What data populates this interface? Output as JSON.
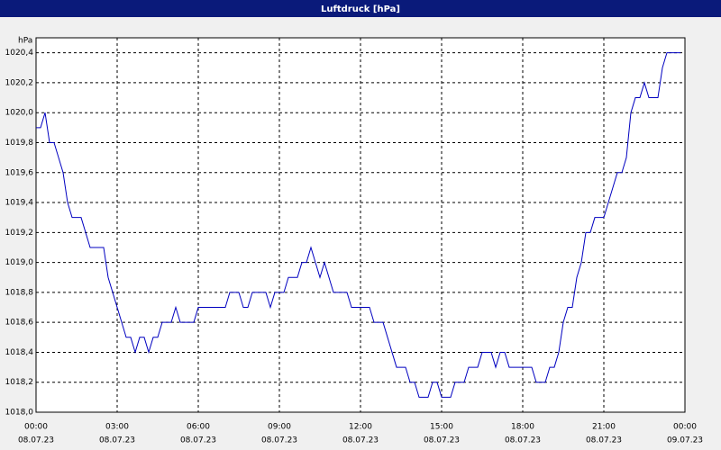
{
  "chart_data": {
    "type": "line",
    "title": "Luftdruck [hPa]",
    "y_unit": "hPa",
    "x": [
      0,
      10,
      20,
      30,
      40,
      50,
      60,
      70,
      80,
      100,
      120,
      150,
      160,
      170,
      180,
      190,
      200,
      210,
      220,
      230,
      240,
      250,
      260,
      270,
      280,
      300,
      310,
      320,
      350,
      360,
      420,
      430,
      450,
      460,
      470,
      480,
      510,
      520,
      530,
      550,
      560,
      580,
      590,
      600,
      610,
      620,
      630,
      640,
      650,
      660,
      690,
      700,
      740,
      750,
      770,
      780,
      790,
      800,
      820,
      830,
      840,
      850,
      870,
      880,
      890,
      900,
      920,
      930,
      950,
      960,
      980,
      990,
      1010,
      1020,
      1030,
      1040,
      1050,
      1100,
      1110,
      1130,
      1140,
      1150,
      1160,
      1170,
      1180,
      1190,
      1200,
      1210,
      1220,
      1230,
      1240,
      1260,
      1270,
      1280,
      1290,
      1300,
      1310,
      1320,
      1330,
      1340,
      1350,
      1360,
      1380,
      1390,
      1400,
      1430
    ],
    "series": [
      {
        "name": "Luftdruck",
        "color": "#0000c0",
        "values": [
          1019.9,
          1019.9,
          1020.0,
          1019.8,
          1019.8,
          1019.7,
          1019.6,
          1019.4,
          1019.3,
          1019.3,
          1019.1,
          1019.1,
          1018.9,
          1018.8,
          1018.7,
          1018.6,
          1018.5,
          1018.5,
          1018.4,
          1018.5,
          1018.5,
          1018.4,
          1018.5,
          1018.5,
          1018.6,
          1018.6,
          1018.7,
          1018.6,
          1018.6,
          1018.7,
          1018.7,
          1018.8,
          1018.8,
          1018.7,
          1018.7,
          1018.8,
          1018.8,
          1018.7,
          1018.8,
          1018.8,
          1018.9,
          1018.9,
          1019.0,
          1019.0,
          1019.1,
          1019.0,
          1018.9,
          1019.0,
          1018.9,
          1018.8,
          1018.8,
          1018.7,
          1018.7,
          1018.6,
          1018.6,
          1018.5,
          1018.4,
          1018.3,
          1018.3,
          1018.2,
          1018.2,
          1018.1,
          1018.1,
          1018.2,
          1018.2,
          1018.1,
          1018.1,
          1018.2,
          1018.2,
          1018.3,
          1018.3,
          1018.4,
          1018.4,
          1018.3,
          1018.4,
          1018.4,
          1018.3,
          1018.3,
          1018.2,
          1018.2,
          1018.3,
          1018.3,
          1018.4,
          1018.6,
          1018.7,
          1018.7,
          1018.9,
          1019.0,
          1019.2,
          1019.2,
          1019.3,
          1019.3,
          1019.4,
          1019.5,
          1019.6,
          1019.6,
          1019.7,
          1020.0,
          1020.1,
          1020.1,
          1020.2,
          1020.1,
          1020.1,
          1020.3,
          1020.4,
          1020.4
        ]
      }
    ],
    "xlim": [
      0,
      1440
    ],
    "xticks": [
      {
        "value": 0,
        "label": "00:00",
        "date": "08.07.23"
      },
      {
        "value": 180,
        "label": "03:00",
        "date": "08.07.23"
      },
      {
        "value": 360,
        "label": "06:00",
        "date": "08.07.23"
      },
      {
        "value": 540,
        "label": "09:00",
        "date": "08.07.23"
      },
      {
        "value": 720,
        "label": "12:00",
        "date": "08.07.23"
      },
      {
        "value": 900,
        "label": "15:00",
        "date": "08.07.23"
      },
      {
        "value": 1080,
        "label": "18:00",
        "date": "08.07.23"
      },
      {
        "value": 1260,
        "label": "21:00",
        "date": "08.07.23"
      },
      {
        "value": 1440,
        "label": "00:00",
        "date": "09.07.23"
      }
    ],
    "ylim": [
      1018.0,
      1020.5
    ],
    "yticks": [
      {
        "value": 1018.0,
        "label": "1018,0"
      },
      {
        "value": 1018.2,
        "label": "1018,2"
      },
      {
        "value": 1018.4,
        "label": "1018,4"
      },
      {
        "value": 1018.6,
        "label": "1018,6"
      },
      {
        "value": 1018.8,
        "label": "1018,8"
      },
      {
        "value": 1019.0,
        "label": "1019,0"
      },
      {
        "value": 1019.2,
        "label": "1019,2"
      },
      {
        "value": 1019.4,
        "label": "1019,4"
      },
      {
        "value": 1019.6,
        "label": "1019,6"
      },
      {
        "value": 1019.8,
        "label": "1019,8"
      },
      {
        "value": 1020.0,
        "label": "1020,0"
      },
      {
        "value": 1020.2,
        "label": "1020,2"
      },
      {
        "value": 1020.4,
        "label": "1020,4"
      }
    ],
    "grid": true
  }
}
